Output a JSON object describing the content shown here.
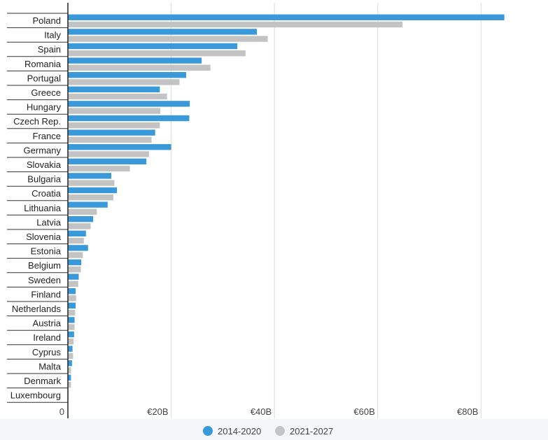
{
  "chart_data": {
    "type": "bar",
    "orientation": "horizontal",
    "categories": [
      "Poland",
      "Italy",
      "Spain",
      "Romania",
      "Portugal",
      "Greece",
      "Hungary",
      "Czech Rep.",
      "France",
      "Germany",
      "Slovakia",
      "Bulgaria",
      "Croatia",
      "Lithuania",
      "Latvia",
      "Slovenia",
      "Estonia",
      "Belgium",
      "Sweden",
      "Finland",
      "Netherlands",
      "Austria",
      "Ireland",
      "Cyprus",
      "Malta",
      "Denmark",
      "Luxembourg"
    ],
    "series": [
      {
        "name": "2014-2020",
        "color": "#3a9ad9",
        "values": [
          84.5,
          36.6,
          32.8,
          25.9,
          22.9,
          17.8,
          23.6,
          23.5,
          16.9,
          20.0,
          15.2,
          8.4,
          9.5,
          7.7,
          4.9,
          3.5,
          3.9,
          2.6,
          2.1,
          1.5,
          1.5,
          1.3,
          1.2,
          0.9,
          0.8,
          0.6,
          0.1
        ]
      },
      {
        "name": "2021-2027",
        "color": "#c3c3c3",
        "values": [
          64.8,
          38.7,
          34.4,
          27.6,
          21.6,
          19.2,
          17.9,
          17.8,
          16.2,
          15.7,
          12.0,
          9.0,
          8.8,
          5.6,
          4.4,
          3.1,
          2.9,
          2.5,
          2.0,
          1.6,
          1.4,
          1.3,
          1.1,
          1.0,
          0.6,
          0.6,
          0.1
        ]
      }
    ],
    "x_axis": {
      "min": 0,
      "max": 92,
      "ticks": [
        {
          "value": 0,
          "label": "0"
        },
        {
          "value": 20,
          "label": "€20B"
        },
        {
          "value": 40,
          "label": "€40B"
        },
        {
          "value": 60,
          "label": "€60B"
        },
        {
          "value": 80,
          "label": "€80B"
        }
      ]
    },
    "grid": true,
    "legend": {
      "position": "bottom-center",
      "marker": "circle"
    }
  }
}
